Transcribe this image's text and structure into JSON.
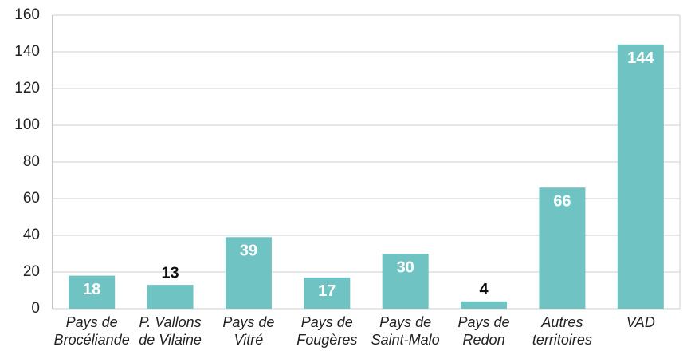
{
  "chart_data": {
    "type": "bar",
    "categories": [
      "Pays de\nBrocéliande",
      "P. Vallons\nde Vilaine",
      "Pays de\nVitré",
      "Pays de\nFougères",
      "Pays de\nSaint-Malo",
      "Pays de\nRedon",
      "Autres\nterritoires",
      "VAD"
    ],
    "values": [
      18,
      13,
      39,
      17,
      30,
      4,
      66,
      144
    ],
    "color": "#6fc3c3",
    "ylim": [
      0,
      160
    ],
    "yticks": [
      0,
      20,
      40,
      60,
      80,
      100,
      120,
      140,
      160
    ],
    "grid": true
  }
}
